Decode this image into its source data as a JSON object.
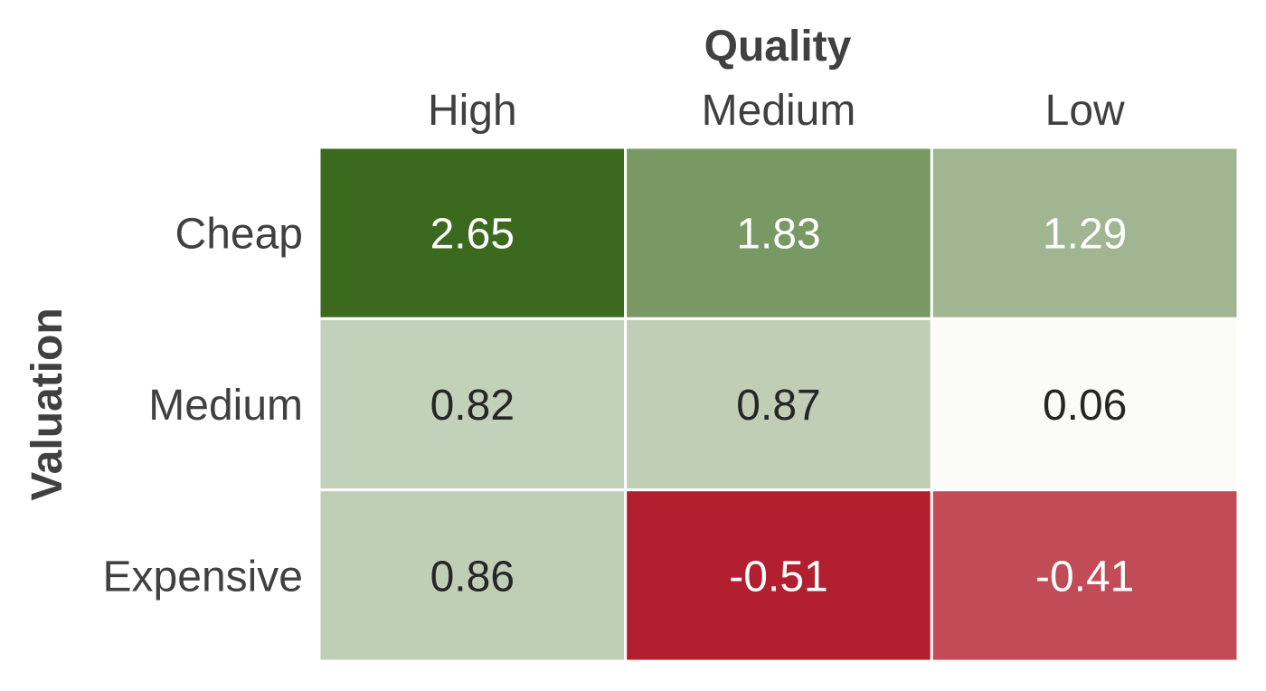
{
  "chart_data": {
    "type": "heatmap",
    "xlabel": "Quality",
    "ylabel": "Valuation",
    "x_categories": [
      "High",
      "Medium",
      "Low"
    ],
    "y_categories": [
      "Cheap",
      "Medium",
      "Expensive"
    ],
    "values": [
      [
        2.65,
        1.83,
        1.29
      ],
      [
        0.82,
        0.87,
        0.06
      ],
      [
        0.86,
        -0.51,
        -0.41
      ]
    ],
    "cell_labels": [
      [
        "2.65",
        "1.83",
        "1.29"
      ],
      [
        "0.82",
        "0.87",
        "0.06"
      ],
      [
        "0.86",
        "-0.51",
        "-0.41"
      ]
    ],
    "colorscale": {
      "center": 0,
      "positive_color": "#3b6a1f",
      "neutral_color": "#ffffff",
      "negative_color": "#b2202f"
    },
    "label_colors": {
      "light": "#ffffff",
      "dark": "#262626"
    },
    "grid_color": "#ffffff"
  }
}
